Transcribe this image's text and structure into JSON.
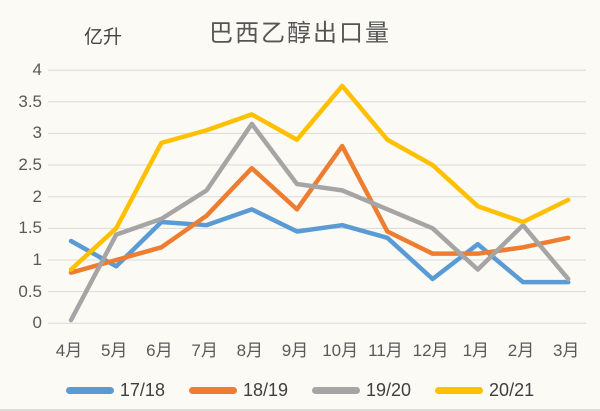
{
  "title": "巴西乙醇出口量",
  "y_unit_label": "亿升",
  "colors": {
    "background": "#FCFAF4",
    "gridline": "#D9D9D9",
    "axis_text": "#595959",
    "title_text": "#555555",
    "legend_text": "#3F3F3F"
  },
  "chart_data": {
    "type": "line",
    "title": "巴西乙醇出口量",
    "ylabel": "亿升",
    "xlabel": "",
    "categories": [
      "4月",
      "5月",
      "6月",
      "7月",
      "8月",
      "9月",
      "10月",
      "11月",
      "12月",
      "1月",
      "2月",
      "3月"
    ],
    "series": [
      {
        "name": "17/18",
        "color": "#5B9BD5",
        "values": [
          1.3,
          0.9,
          1.6,
          1.55,
          1.8,
          1.45,
          1.55,
          1.35,
          0.7,
          1.25,
          0.65,
          0.65
        ]
      },
      {
        "name": "18/19",
        "color": "#ED7D31",
        "values": [
          0.8,
          1.0,
          1.2,
          1.7,
          2.45,
          1.8,
          2.8,
          1.45,
          1.1,
          1.1,
          1.2,
          1.35
        ]
      },
      {
        "name": "19/20",
        "color": "#A5A5A5",
        "values": [
          0.05,
          1.4,
          1.65,
          2.1,
          3.15,
          2.2,
          2.1,
          1.8,
          1.5,
          0.85,
          1.55,
          0.7
        ]
      },
      {
        "name": "20/21",
        "color": "#FFC000",
        "values": [
          0.85,
          1.5,
          2.85,
          3.05,
          3.3,
          2.9,
          3.75,
          2.9,
          2.5,
          1.85,
          1.6,
          1.95
        ]
      }
    ],
    "ylim": [
      0,
      4
    ],
    "y_tick_step": 0.5,
    "grid": true,
    "legend_position": "bottom"
  }
}
